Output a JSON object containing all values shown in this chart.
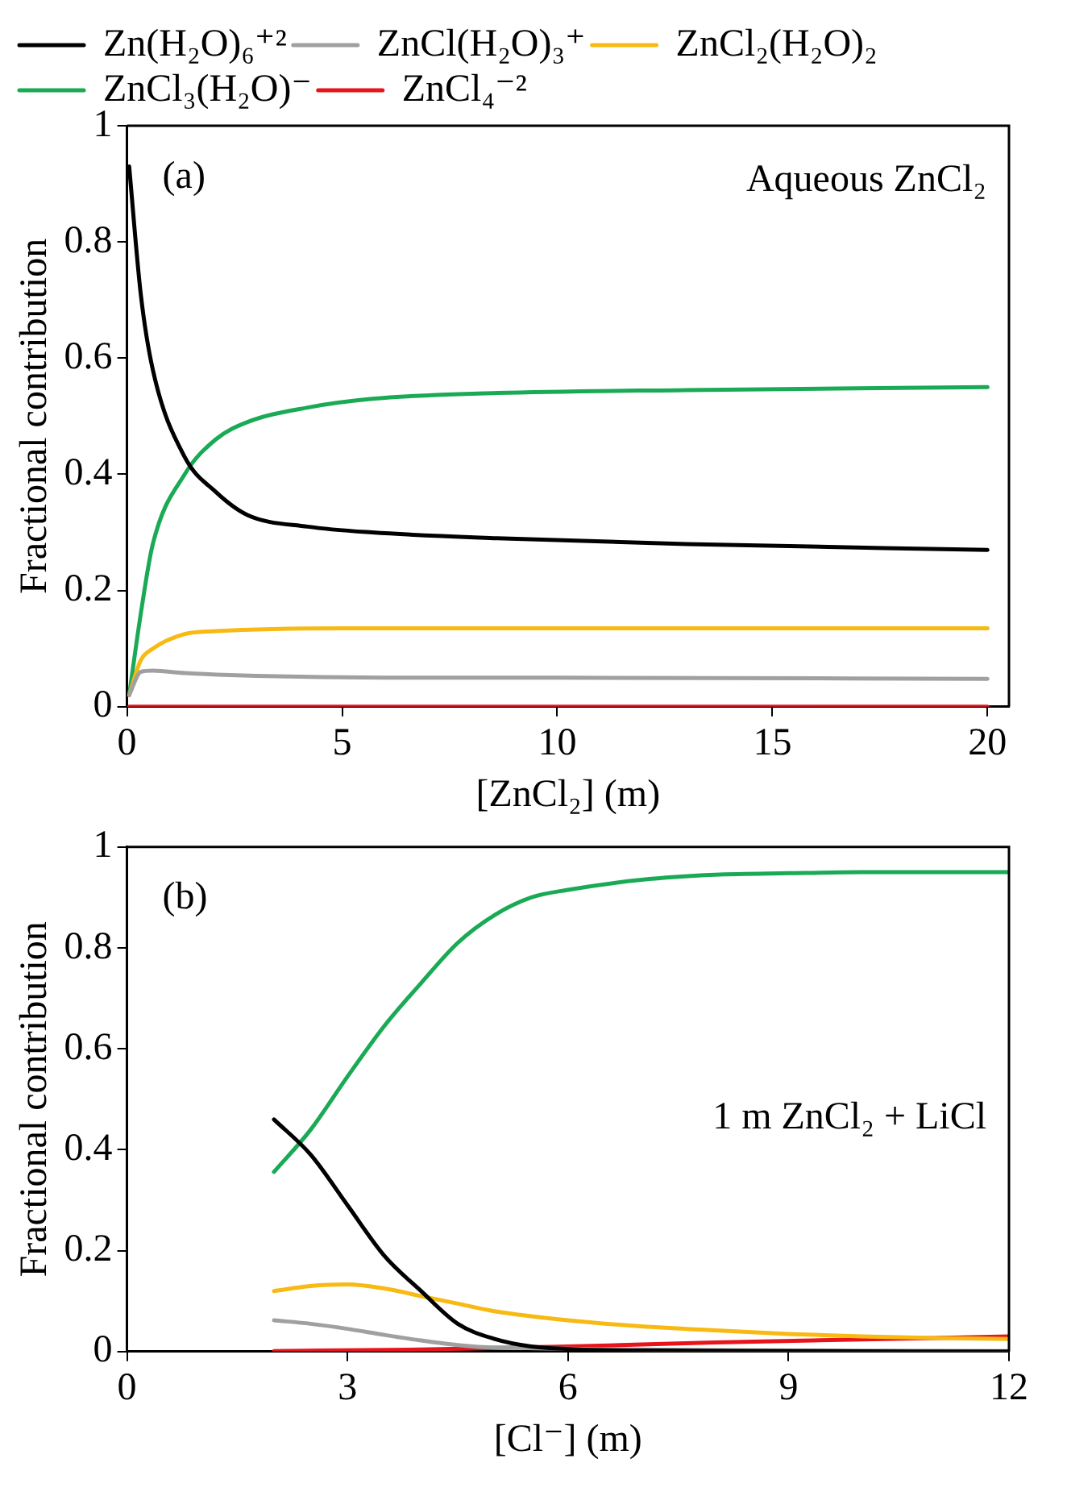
{
  "chart_data": [
    {
      "type": "line",
      "xlabel": "[ZnCl₂] (m)",
      "ylabel": "Fractional contribution",
      "annotations": [
        "(a)",
        "Aqueous ZnCl₂"
      ],
      "xlim": [
        0,
        20.5
      ],
      "xticks": [
        0,
        5,
        10,
        15,
        20
      ],
      "ylim": [
        0,
        1
      ],
      "yticks": [
        0,
        0.2,
        0.4,
        0.6,
        0.8,
        1
      ],
      "grid": false,
      "legend": "top",
      "marker": "none",
      "line_style": "solid",
      "series": [
        {
          "name": "Zn(H₂O)₆⁺²",
          "color": "#000000",
          "x": [
            0.05,
            0.32,
            0.6,
            1.34,
            2.06,
            2.8,
            4.2,
            5.7,
            8.6,
            13,
            20
          ],
          "values": [
            0.93,
            0.71,
            0.58,
            0.43,
            0.37,
            0.33,
            0.31,
            0.3,
            0.29,
            0.28,
            0.27
          ]
        },
        {
          "name": "ZnCl(H₂O)₃⁺",
          "color": "#a0a0a0",
          "x": [
            0.05,
            0.32,
            0.6,
            1.34,
            3,
            6,
            10,
            20
          ],
          "values": [
            0.02,
            0.06,
            0.062,
            0.058,
            0.053,
            0.05,
            0.05,
            0.048
          ]
        },
        {
          "name": "ZnCl₂(H₂O)₂",
          "color": "#f7b912",
          "x": [
            0.05,
            0.32,
            0.6,
            1.34,
            2.06,
            5,
            20
          ],
          "values": [
            0.02,
            0.08,
            0.1,
            0.125,
            0.13,
            0.135,
            0.135
          ]
        },
        {
          "name": "ZnCl₃(H₂O)⁻",
          "color": "#1aaa55",
          "x": [
            0.05,
            0.32,
            0.6,
            1.34,
            2.06,
            2.8,
            4.2,
            5.7,
            8.6,
            13,
            20
          ],
          "values": [
            0.02,
            0.16,
            0.28,
            0.4,
            0.46,
            0.49,
            0.515,
            0.53,
            0.54,
            0.545,
            0.55
          ]
        },
        {
          "name": "ZnCl₄⁻²",
          "color": "#e8141c",
          "x": [
            0.05,
            20
          ],
          "values": [
            0,
            0
          ]
        }
      ]
    },
    {
      "type": "line",
      "xlabel": "[Cl⁻] (m)",
      "ylabel": "Fractional contribution",
      "annotations": [
        "(b)",
        "1 m ZnCl₂ + LiCl"
      ],
      "xlim": [
        0,
        12
      ],
      "xticks": [
        0,
        3,
        6,
        9,
        12
      ],
      "ylim": [
        0,
        1
      ],
      "yticks": [
        0,
        0.2,
        0.4,
        0.6,
        0.8,
        1
      ],
      "grid": false,
      "marker": "none",
      "line_style": "solid",
      "series": [
        {
          "color": "#000000",
          "x": [
            2,
            2.5,
            3,
            3.5,
            4,
            4.5,
            5,
            5.5,
            6,
            7,
            12
          ],
          "values": [
            0.46,
            0.39,
            0.29,
            0.19,
            0.12,
            0.055,
            0.025,
            0.01,
            0.005,
            0.002,
            0
          ]
        },
        {
          "color": "#a0a0a0",
          "x": [
            2,
            2.5,
            3,
            3.5,
            4,
            4.5,
            5,
            12
          ],
          "values": [
            0.062,
            0.055,
            0.045,
            0.033,
            0.022,
            0.013,
            0.008,
            0.001
          ]
        },
        {
          "color": "#f7b912",
          "x": [
            2,
            2.5,
            3,
            3.5,
            4,
            4.5,
            5,
            6,
            7,
            8,
            9,
            10,
            11,
            12
          ],
          "values": [
            0.12,
            0.13,
            0.133,
            0.125,
            0.11,
            0.095,
            0.08,
            0.062,
            0.05,
            0.042,
            0.035,
            0.03,
            0.027,
            0.025
          ]
        },
        {
          "color": "#1aaa55",
          "x": [
            2,
            2.5,
            3,
            3.5,
            4,
            4.5,
            5,
            5.5,
            6,
            7,
            8,
            9,
            10,
            12
          ],
          "values": [
            0.356,
            0.44,
            0.545,
            0.645,
            0.73,
            0.81,
            0.865,
            0.9,
            0.915,
            0.935,
            0.945,
            0.948,
            0.95,
            0.95
          ]
        },
        {
          "color": "#e8141c",
          "x": [
            2,
            4,
            6,
            8,
            10,
            12
          ],
          "values": [
            0.001,
            0.004,
            0.01,
            0.018,
            0.024,
            0.03
          ]
        }
      ]
    }
  ]
}
